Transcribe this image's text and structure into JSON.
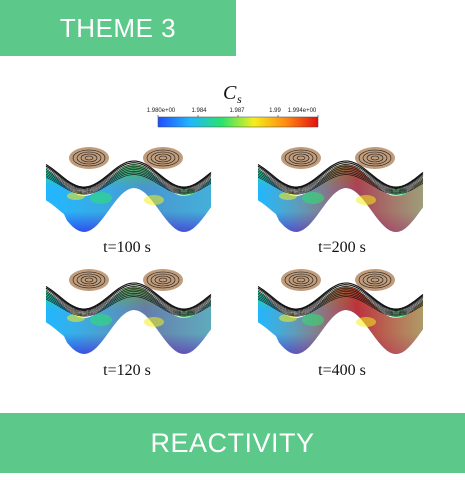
{
  "banner_top": {
    "label": "THEME 3"
  },
  "banner_bottom": {
    "label": "REACTIVITY"
  },
  "colorbar": {
    "title_main": "C",
    "title_sub": "s",
    "tick_labels": [
      "1.980e+00",
      "1.984",
      "1.987",
      "1.99",
      "1.994e+00"
    ],
    "colors": [
      "#1f4fff",
      "#21b6ff",
      "#2be36b",
      "#f4ee1c",
      "#ff8a12",
      "#e31010"
    ]
  },
  "panels": [
    {
      "caption": "t=100 s",
      "hot": 0.2
    },
    {
      "caption": "t=200 s",
      "hot": 0.7
    },
    {
      "caption": "t=120 s",
      "hot": 0.35
    },
    {
      "caption": "t=400 s",
      "hot": 0.8
    }
  ]
}
